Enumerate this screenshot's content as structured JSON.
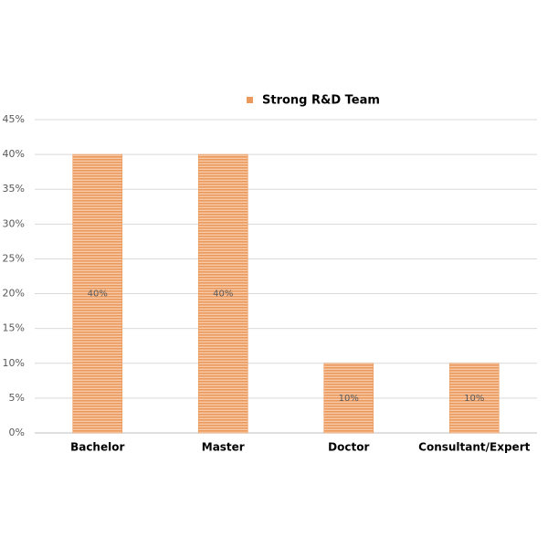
{
  "chart_data": {
    "type": "bar",
    "legend_position": "top",
    "series": [
      {
        "name": "Strong R&D Team",
        "color": "#eb9a5d",
        "values": [
          40,
          40,
          10,
          10
        ],
        "value_labels": [
          "40%",
          "40%",
          "10%",
          "10%"
        ]
      }
    ],
    "categories": [
      "Bachelor",
      "Master",
      "Doctor",
      "Consultant/Expert"
    ],
    "ylim": [
      0,
      45
    ],
    "yticks": [
      {
        "value": 0,
        "label": "0%"
      },
      {
        "value": 5,
        "label": "5%"
      },
      {
        "value": 10,
        "label": "10%"
      },
      {
        "value": 15,
        "label": "15%"
      },
      {
        "value": 20,
        "label": "20%"
      },
      {
        "value": 25,
        "label": "25%"
      },
      {
        "value": 30,
        "label": "30%"
      },
      {
        "value": 35,
        "label": "35%"
      },
      {
        "value": 40,
        "label": "40%"
      },
      {
        "value": 45,
        "label": "45%"
      }
    ],
    "grid": true
  }
}
